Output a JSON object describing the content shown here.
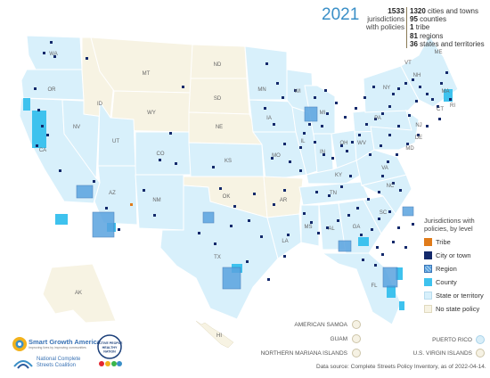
{
  "title": {
    "year": "2021"
  },
  "summary": {
    "total_count": "1533",
    "total_label_1": "jurisdictions",
    "total_label_2": "with policies",
    "breakdown": [
      {
        "count": "1320",
        "label": "cities and towns"
      },
      {
        "count": "95",
        "label": "counties"
      },
      {
        "count": "1",
        "label": "tribe"
      },
      {
        "count": "81",
        "label": "regions"
      },
      {
        "count": "36",
        "label": "states and territories"
      }
    ]
  },
  "legend": {
    "title_1": "Jurisdictions with",
    "title_2": "policies, by level",
    "items": [
      {
        "label": "Tribe",
        "color": "#e07b1a"
      },
      {
        "label": "City or town",
        "color": "#13296b"
      },
      {
        "label": "Region",
        "color": "#5aa3df"
      },
      {
        "label": "County",
        "color": "#3ec2ee"
      },
      {
        "label": "State or territory",
        "color": "#d8f0fb"
      },
      {
        "label": "No state policy",
        "color": "#f7f3e3"
      }
    ]
  },
  "territories": [
    {
      "name": "AMERICAN SAMOA",
      "has_policy": false
    },
    {
      "name": "GUAM",
      "has_policy": false
    },
    {
      "name": "NORTHERN MARIANA ISLANDS",
      "has_policy": false
    },
    {
      "name": "PUERTO RICO",
      "has_policy": true
    },
    {
      "name": "U.S. VIRGIN ISLANDS",
      "has_policy": false
    }
  ],
  "state_labels": [
    "WA",
    "OR",
    "ID",
    "MT",
    "ND",
    "MN",
    "WI",
    "MI",
    "SD",
    "WY",
    "NV",
    "CA",
    "UT",
    "CO",
    "NE",
    "IA",
    "IL",
    "IN",
    "OH",
    "PA",
    "NY",
    "VT",
    "NH",
    "ME",
    "MA",
    "RI",
    "CT",
    "NJ",
    "DE",
    "MD",
    "WV",
    "VA",
    "KY",
    "MO",
    "KS",
    "OK",
    "AR",
    "TN",
    "NC",
    "SC",
    "GA",
    "AL",
    "MS",
    "LA",
    "TX",
    "NM",
    "AZ",
    "FL",
    "AK",
    "HI"
  ],
  "source": "Data source: Complete Streets Policy Inventory, as of 2022-04-14.",
  "logos": {
    "sga_name": "Smart Growth America",
    "sga_tagline": "Improving lives by improving communities",
    "ncsc_line1": "National Complete",
    "ncsc_line2": "Streets Coalition",
    "apa_text": "ACTIVE PEOPLE HEALTHY NATION"
  },
  "colors": {
    "policy_state": "#d8f0fb",
    "no_policy_state": "#f7f3e3",
    "border": "#ffffff",
    "accent": "#3a8fc7"
  }
}
